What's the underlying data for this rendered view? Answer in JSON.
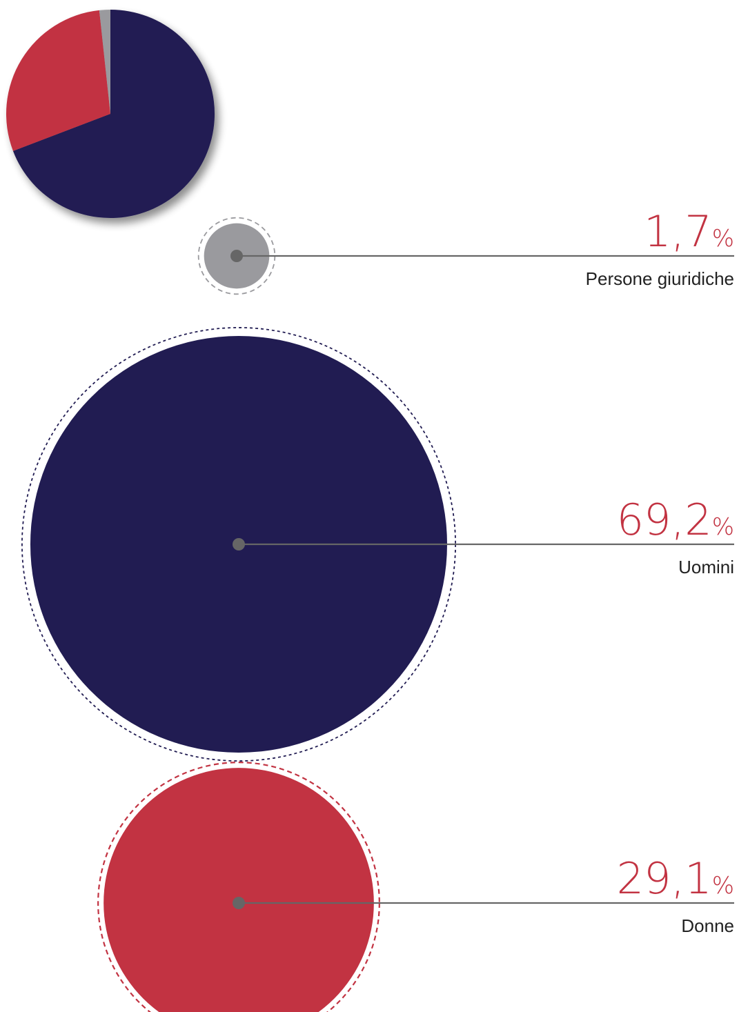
{
  "chart_data": {
    "type": "pie",
    "categories": [
      "Uomini",
      "Donne",
      "Persone giuridiche"
    ],
    "values": [
      69.2,
      29.1,
      1.7
    ],
    "value_labels": [
      "69,2",
      "29,1",
      "1,7"
    ],
    "unit": "%",
    "colors": [
      "#211c52",
      "#c23342",
      "#9a9a9e"
    ]
  },
  "colors": {
    "value_text": "#c23342",
    "leader_line": "#666666",
    "center_dot": "#666666",
    "label_text": "#222222"
  }
}
